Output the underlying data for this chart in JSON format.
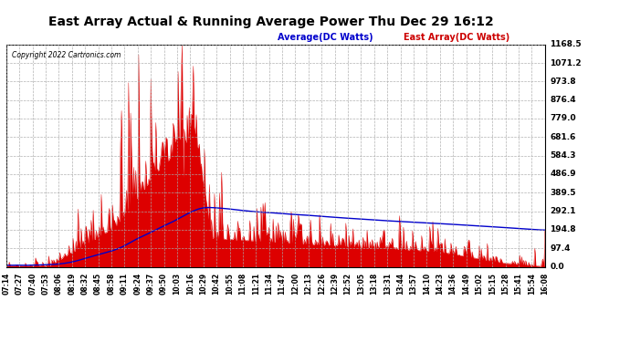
{
  "title": "East Array Actual & Running Average Power Thu Dec 29 16:12",
  "copyright": "Copyright 2022 Cartronics.com",
  "legend_avg": "Average(DC Watts)",
  "legend_east": "East Array(DC Watts)",
  "yticks": [
    0.0,
    97.4,
    194.8,
    292.1,
    389.5,
    486.9,
    584.3,
    681.6,
    779.0,
    876.4,
    973.8,
    1071.2,
    1168.5
  ],
  "ymax": 1168.5,
  "ymin": 0.0,
  "title_fontsize": 11,
  "bg_color": "#ffffff",
  "grid_color": "#aaaaaa",
  "bar_color": "#dd0000",
  "avg_color": "#0000cc",
  "east_label_color": "#cc0000",
  "avg_label_color": "#0000cc",
  "xtick_labels": [
    "07:14",
    "07:27",
    "07:40",
    "07:53",
    "08:06",
    "08:19",
    "08:32",
    "08:45",
    "08:58",
    "09:11",
    "09:24",
    "09:37",
    "09:50",
    "10:03",
    "10:16",
    "10:29",
    "10:42",
    "10:55",
    "11:08",
    "11:21",
    "11:34",
    "11:47",
    "12:00",
    "12:13",
    "12:26",
    "12:39",
    "12:52",
    "13:05",
    "13:18",
    "13:31",
    "13:44",
    "13:57",
    "14:10",
    "14:23",
    "14:36",
    "14:49",
    "15:02",
    "15:15",
    "15:28",
    "15:41",
    "15:54",
    "16:08"
  ]
}
